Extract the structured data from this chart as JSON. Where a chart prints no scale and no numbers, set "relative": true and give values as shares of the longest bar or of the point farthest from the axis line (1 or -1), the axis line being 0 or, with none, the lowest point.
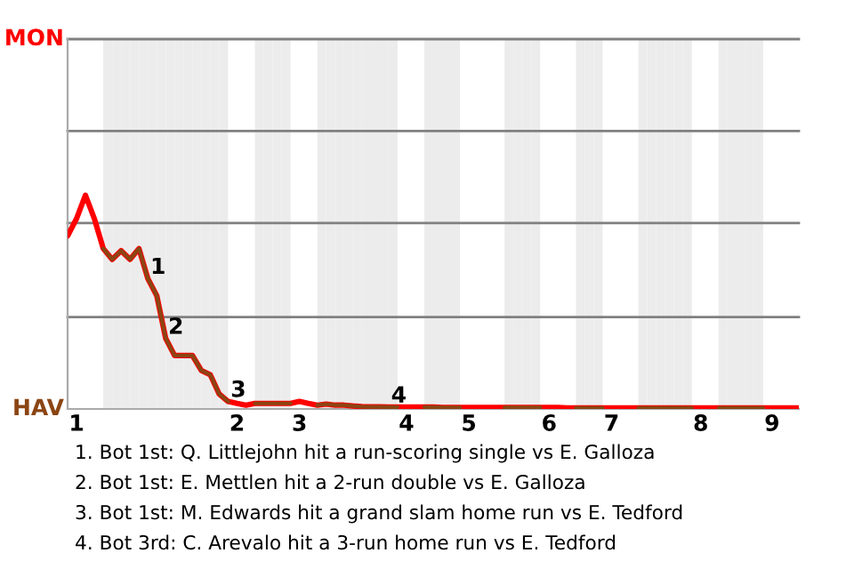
{
  "chart_data": {
    "type": "line",
    "relative": true,
    "categories": [
      null,
      "1",
      null,
      null,
      null,
      null,
      null,
      null,
      null,
      null,
      null,
      null,
      null,
      null,
      null,
      null,
      null,
      null,
      null,
      "2",
      null,
      null,
      null,
      null,
      null,
      null,
      "3",
      null,
      null,
      null,
      null,
      null,
      null,
      null,
      null,
      null,
      null,
      null,
      "4",
      null,
      null,
      null,
      null,
      null,
      null,
      "5",
      null,
      null,
      null,
      null,
      null,
      null,
      null,
      null,
      "6",
      null,
      null,
      null,
      null,
      null,
      null,
      "7",
      null,
      null,
      null,
      null,
      null,
      null,
      null,
      null,
      null,
      "8",
      null,
      null,
      null,
      null,
      null,
      null,
      null,
      "9",
      null,
      null,
      null
    ],
    "series": [
      {
        "color": "#ff0000",
        "values": [
          0.81,
          0.89,
          1,
          0.89,
          0.75,
          0.7,
          0.74,
          0.7,
          0.75,
          0.61,
          0.53,
          0.33,
          0.25,
          0.25,
          0.25,
          0.18,
          0.16,
          0.07,
          0.035,
          0.026,
          0.018,
          0.026,
          0.026,
          0.026,
          0.026,
          0.026,
          0.035,
          0.026,
          0.018,
          0.023,
          0.018,
          0.018,
          0.014,
          0.011,
          0.01,
          0.01,
          0.009,
          0.009,
          0.009,
          0.009,
          0.009,
          0.009,
          0.007,
          0.007,
          0.007,
          0.007,
          0.007,
          0.007,
          0.007,
          0.007,
          0.007,
          0.007,
          0.007,
          0.007,
          0.007,
          0.007,
          0.005,
          0.005,
          0.005,
          0.005,
          0.005,
          0.005,
          0.005,
          0.005,
          0.005,
          0.005,
          0.005,
          0.005,
          0.005,
          0.005,
          0.005,
          0.005,
          0.005,
          0.005,
          0.005,
          0.005,
          0.005,
          0.005,
          0.005,
          0.005,
          0.005,
          0.005,
          0.005
        ]
      },
      {
        "color": "#8b4513",
        "values": [
          null,
          null,
          null,
          null,
          0.75,
          0.7,
          0.74,
          0.7,
          0.75,
          0.61,
          0.53,
          0.33,
          0.25,
          0.25,
          0.25,
          0.18,
          0.16,
          0.07,
          0.035,
          null,
          null,
          0.026,
          0.026,
          0.026,
          0.026,
          0.026,
          null,
          null,
          0.018,
          0.023,
          0.018,
          0.018,
          0.014,
          0.011,
          0.01,
          0.01,
          0.009,
          0.009,
          null,
          null,
          0.009,
          0.009,
          0.007,
          0.007,
          0.007,
          null,
          null,
          null,
          null,
          0.007,
          0.007,
          0.007,
          0.007,
          0.007,
          null,
          null,
          null,
          0.005,
          0.005,
          0.005,
          0.005,
          null,
          null,
          null,
          0.005,
          0.005,
          0.005,
          0.005,
          0.005,
          0.005,
          0.005,
          null,
          null,
          0.005,
          0.005,
          0.005,
          0.005,
          0.005,
          0.005,
          null,
          null,
          null,
          null
        ]
      }
    ],
    "ref_lines": [
      {
        "axis": "y",
        "value": 0.43,
        "color": "#808080"
      },
      {
        "axis": "y",
        "value": 0.87,
        "color": "#808080"
      },
      {
        "axis": "y",
        "value": 1.3,
        "color": "#808080"
      },
      {
        "axis": "y",
        "value": 1.73,
        "color": "#808080"
      }
    ],
    "annotations": [
      "MON",
      "HAV",
      {
        "text": "1",
        "y": 0.61
      },
      {
        "text": "2",
        "y": 0.33
      },
      {
        "text": "3",
        "y": 0.035
      },
      {
        "text": "4",
        "y": 0.009
      },
      "1. Bot 1st: Q. Littlejohn hit a run-scoring single vs E. Galloza",
      "2. Bot 1st: E. Mettlen hit a 2-run double vs E. Galloza",
      "3. Bot 1st: M. Edwards hit a grand slam home run vs E. Tedford",
      "4. Bot 3rd: C. Arevalo hit a 3-run home run vs E. Tedford"
    ]
  }
}
